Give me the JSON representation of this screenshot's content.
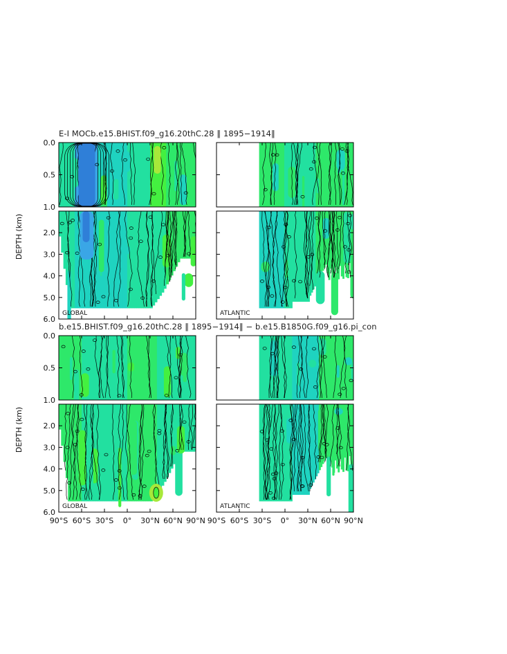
{
  "chart_data": [
    {
      "type": "heatmap",
      "title": "E-I  MOCb.e15.BHIST.f09_g16.20thC.28  ‖ 1895−1914‖",
      "ylabel": "DEPTH (km)",
      "panels": [
        {
          "region": "GLOBAL"
        },
        {
          "region": "ATLANTIC"
        }
      ],
      "ylim": [
        6.0,
        0.0
      ],
      "upper_yticks": [
        "0.0",
        "0.5",
        "1.0"
      ],
      "lower_yticks": [
        "2.0",
        "3.0",
        "4.0",
        "5.0",
        "6.0"
      ],
      "contour_labels": "0"
    },
    {
      "type": "heatmap",
      "title": "b.e15.BHIST.f09_g16.20thC.28  ‖ 1895−1914‖  −  b.e15.B1850G.f09_g16.pi_con",
      "ylabel": "DEPTH (km)",
      "panels": [
        {
          "region": "GLOBAL"
        },
        {
          "region": "ATLANTIC"
        }
      ],
      "ylim": [
        6.0,
        0.0
      ],
      "upper_yticks": [
        "0.0",
        "0.5",
        "1.0"
      ],
      "lower_yticks": [
        "2.0",
        "3.0",
        "4.0",
        "5.0",
        "6.0"
      ],
      "contour_labels": "0"
    }
  ],
  "xticks": [
    "90°S",
    "60°S",
    "30°S",
    "0°",
    "30°N",
    "60°N",
    "90°N"
  ],
  "colors": {
    "deep_blue": "#2f7fd8",
    "blue": "#3aa6e6",
    "teal": "#1fd3c0",
    "cyan_green": "#22e0a0",
    "green": "#2ee86a",
    "bright_green": "#44f040",
    "yellow_green": "#a8e83a",
    "contour": "#000000"
  }
}
